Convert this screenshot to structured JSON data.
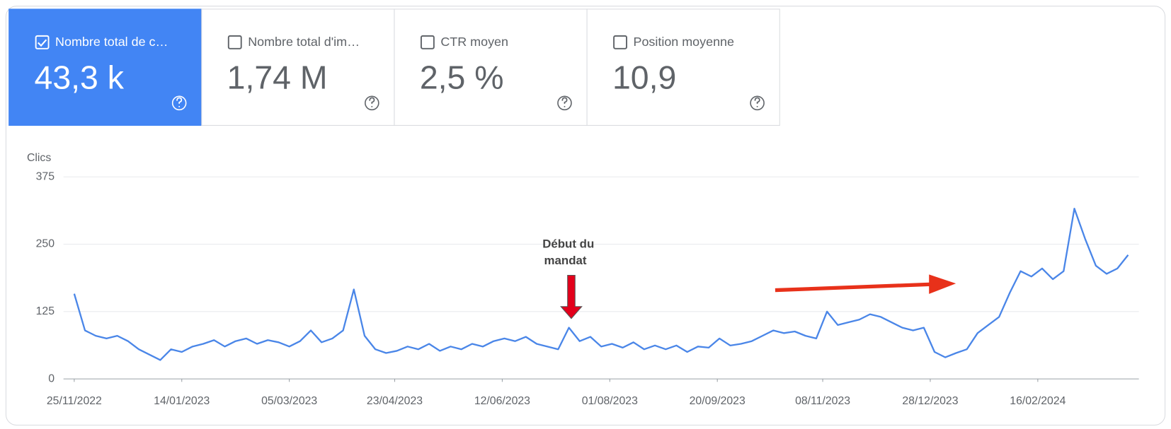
{
  "cards": [
    {
      "label": "Nombre total de c…",
      "value": "43,3 k",
      "checked": true,
      "color": "#4285f4"
    },
    {
      "label": "Nombre total d'im…",
      "value": "1,74 M",
      "checked": false,
      "color": "#ffffff"
    },
    {
      "label": "CTR moyen",
      "value": "2,5 %",
      "checked": false,
      "color": "#ffffff"
    },
    {
      "label": "Position moyenne",
      "value": "10,9",
      "checked": false,
      "color": "#ffffff"
    }
  ],
  "chart_data": {
    "type": "line",
    "y_label": "Clics",
    "annotation": [
      "Début du",
      "mandat"
    ],
    "color": "#4a86e8",
    "grid": true,
    "ylim": [
      0,
      375
    ],
    "yticks": [
      0,
      125,
      250,
      375
    ],
    "xlim": [
      "20/11/2022",
      "03/04/2024"
    ],
    "xticks": [
      "25/11/2022",
      "14/01/2023",
      "05/03/2023",
      "23/04/2023",
      "12/06/2023",
      "01/08/2023",
      "20/09/2023",
      "08/11/2023",
      "28/12/2023",
      "16/02/2024"
    ],
    "x": [
      "25/11/2022",
      "30/11/2022",
      "05/12/2022",
      "10/12/2022",
      "15/12/2022",
      "20/12/2022",
      "25/12/2022",
      "30/12/2022",
      "04/01/2023",
      "09/01/2023",
      "14/01/2023",
      "19/01/2023",
      "24/01/2023",
      "29/01/2023",
      "03/02/2023",
      "08/02/2023",
      "13/02/2023",
      "18/02/2023",
      "23/02/2023",
      "28/02/2023",
      "05/03/2023",
      "10/03/2023",
      "15/03/2023",
      "20/03/2023",
      "25/03/2023",
      "30/03/2023",
      "04/04/2023",
      "09/04/2023",
      "14/04/2023",
      "19/04/2023",
      "24/04/2023",
      "29/04/2023",
      "04/05/2023",
      "09/05/2023",
      "14/05/2023",
      "19/05/2023",
      "24/05/2023",
      "29/05/2023",
      "03/06/2023",
      "08/06/2023",
      "13/06/2023",
      "18/06/2023",
      "23/06/2023",
      "28/06/2023",
      "03/07/2023",
      "08/07/2023",
      "13/07/2023",
      "18/07/2023",
      "23/07/2023",
      "28/07/2023",
      "02/08/2023",
      "07/08/2023",
      "12/08/2023",
      "17/08/2023",
      "22/08/2023",
      "27/08/2023",
      "01/09/2023",
      "06/09/2023",
      "11/09/2023",
      "16/09/2023",
      "21/09/2023",
      "26/09/2023",
      "01/10/2023",
      "06/10/2023",
      "11/10/2023",
      "16/10/2023",
      "21/10/2023",
      "26/10/2023",
      "31/10/2023",
      "05/11/2023",
      "10/11/2023",
      "15/11/2023",
      "20/11/2023",
      "25/11/2023",
      "30/11/2023",
      "05/12/2023",
      "10/12/2023",
      "15/12/2023",
      "20/12/2023",
      "25/12/2023",
      "30/12/2023",
      "04/01/2024",
      "09/01/2024",
      "14/01/2024",
      "19/01/2024",
      "24/01/2024",
      "29/01/2024",
      "03/02/2024",
      "08/02/2024",
      "13/02/2024",
      "18/02/2024",
      "23/02/2024",
      "28/02/2024",
      "04/03/2024",
      "09/03/2024",
      "14/03/2024",
      "19/03/2024",
      "24/03/2024",
      "29/03/2024"
    ],
    "values": [
      158,
      90,
      80,
      75,
      80,
      70,
      55,
      45,
      35,
      55,
      50,
      60,
      65,
      72,
      60,
      70,
      75,
      65,
      72,
      68,
      60,
      70,
      90,
      68,
      75,
      90,
      166,
      80,
      55,
      48,
      52,
      60,
      55,
      65,
      52,
      60,
      55,
      65,
      60,
      70,
      75,
      70,
      78,
      65,
      60,
      55,
      95,
      70,
      78,
      60,
      65,
      58,
      68,
      55,
      62,
      55,
      62,
      50,
      60,
      58,
      75,
      62,
      65,
      70,
      80,
      90,
      85,
      88,
      80,
      75,
      125,
      100,
      105,
      110,
      120,
      115,
      105,
      95,
      90,
      95,
      50,
      40,
      48,
      55,
      85,
      100,
      115,
      160,
      200,
      190,
      205,
      185,
      200,
      316,
      260,
      210,
      195,
      205,
      230
    ]
  }
}
